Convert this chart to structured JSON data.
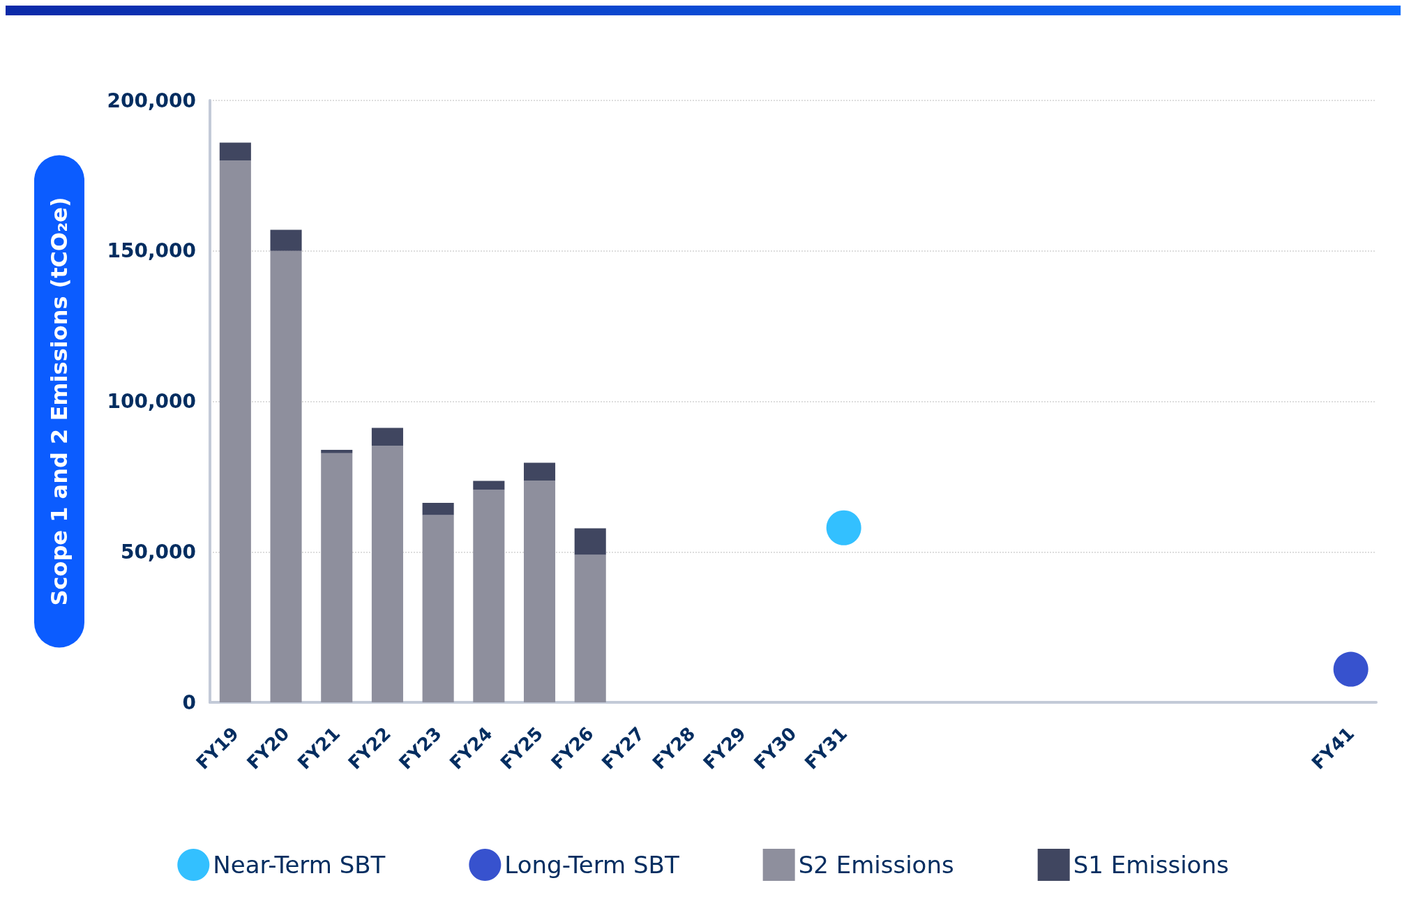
{
  "chart_data": {
    "type": "bar",
    "stacked": true,
    "ylabel": "Scope 1 and 2 Emissions (tCO₂e)",
    "categories": [
      "FY19",
      "FY20",
      "FY21",
      "FY22",
      "FY23",
      "FY24",
      "FY25",
      "FY26",
      "FY27",
      "FY28",
      "FY29",
      "FY30",
      "FY31",
      null,
      null,
      null,
      null,
      null,
      null,
      null,
      null,
      null,
      "FY41"
    ],
    "series": [
      {
        "name": "Near-Term SBT",
        "type": "scatter",
        "color": "#00b0ff",
        "x": [
          "FY31"
        ],
        "values": [
          58000
        ]
      },
      {
        "name": "Long-Term SBT",
        "type": "scatter",
        "color": "#0527c2",
        "x": [
          "FY41"
        ],
        "values": [
          11000
        ]
      },
      {
        "name": "S2 Emissions",
        "color": "#8e8f9d",
        "values": [
          180000,
          150000,
          82800,
          85200,
          62200,
          70600,
          73700,
          49000,
          null,
          null,
          null,
          null,
          null,
          null,
          null,
          null,
          null,
          null,
          null,
          null,
          null,
          null,
          null
        ]
      },
      {
        "name": "S1 Emissions",
        "color": "#404660",
        "values": [
          6000,
          7000,
          1100,
          6000,
          4100,
          3000,
          5900,
          8800,
          null,
          null,
          null,
          null,
          null,
          null,
          null,
          null,
          null,
          null,
          null,
          null,
          null,
          null,
          null
        ]
      }
    ],
    "ylim": [
      0,
      200000
    ],
    "yticks": [
      {
        "value": 0,
        "label": "0"
      },
      {
        "value": 50000,
        "label": "50,000"
      },
      {
        "value": 100000,
        "label": "100,000"
      },
      {
        "value": 150000,
        "label": "150,000"
      },
      {
        "value": 200000,
        "label": "200,000"
      }
    ],
    "grid": "y",
    "legend": "bottom",
    "marker": "circle"
  }
}
